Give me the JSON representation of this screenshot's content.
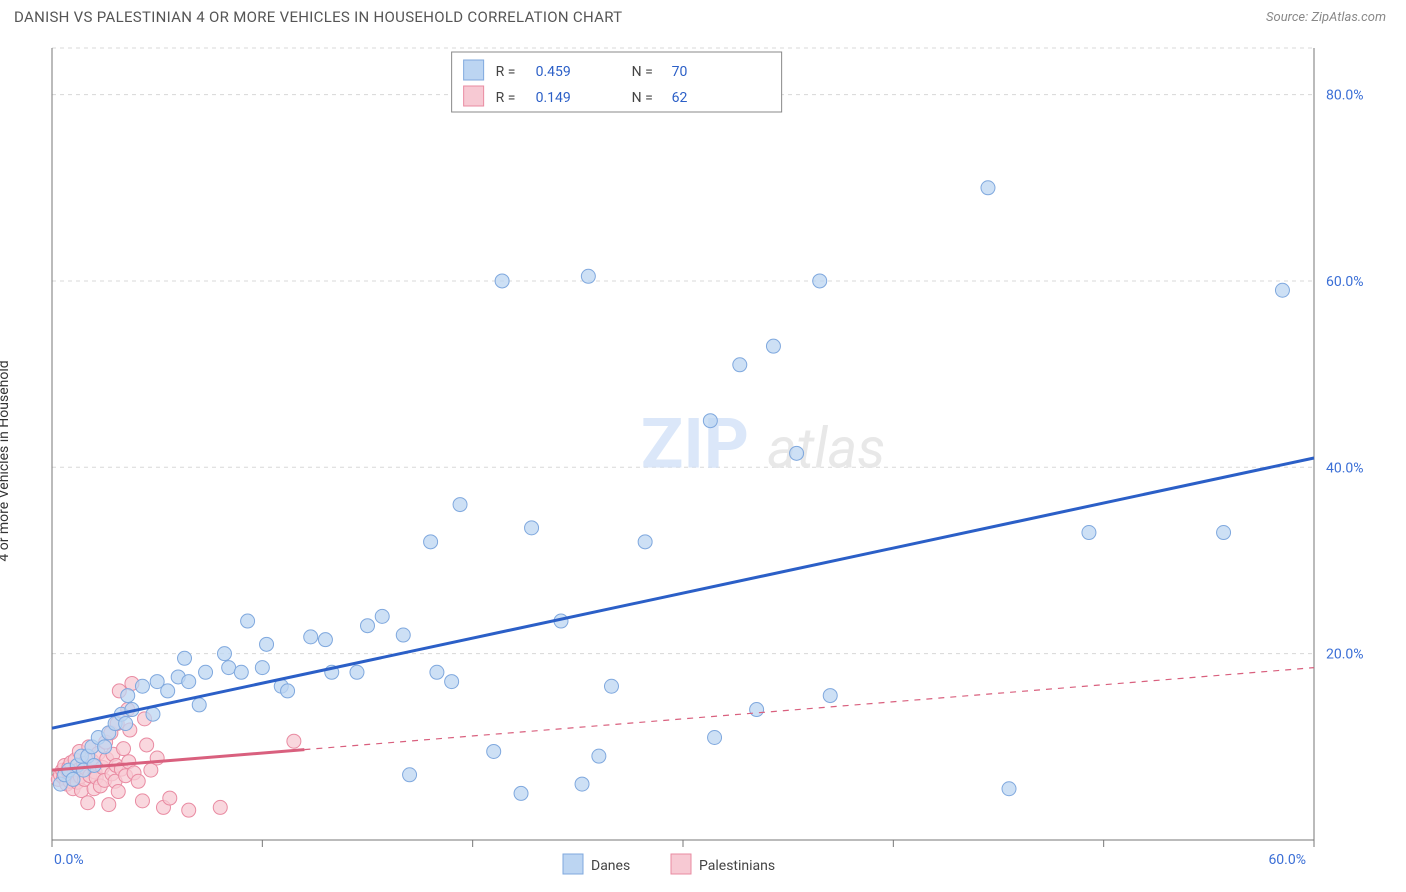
{
  "header": {
    "title": "DANISH VS PALESTINIAN 4 OR MORE VEHICLES IN HOUSEHOLD CORRELATION CHART",
    "source_prefix": "Source: ",
    "source_name": "ZipAtlas.com"
  },
  "axes": {
    "ylabel": "4 or more Vehicles in Household",
    "xlim": [
      0,
      60
    ],
    "ylim": [
      0,
      85
    ],
    "x_ticks": [
      {
        "v": 0,
        "label": "0.0%"
      },
      {
        "v": 60,
        "label": "60.0%"
      }
    ],
    "x_tick_minor": [
      10,
      20,
      30,
      40,
      50
    ],
    "y_ticks": [
      {
        "v": 20,
        "label": "20.0%"
      },
      {
        "v": 40,
        "label": "40.0%"
      },
      {
        "v": 60,
        "label": "60.0%"
      },
      {
        "v": 80,
        "label": "80.0%"
      }
    ],
    "grid_color": "#d8d8d8",
    "axis_color": "#777777",
    "bg_color": "#ffffff"
  },
  "series": {
    "danes": {
      "label": "Danes",
      "fill": "#bcd5f2",
      "stroke": "#7fa8de",
      "r_value": "0.459",
      "n_value": "70",
      "marker_r": 7,
      "trend": {
        "x1": 0,
        "y1": 12.0,
        "x2": 60,
        "y2": 41.0,
        "x_solid_end": 60,
        "color": "#2b5fc7"
      },
      "points": [
        [
          0.4,
          6
        ],
        [
          0.6,
          7
        ],
        [
          0.8,
          7.5
        ],
        [
          1,
          6.5
        ],
        [
          1.2,
          8
        ],
        [
          1.5,
          7.5
        ],
        [
          1.4,
          9
        ],
        [
          1.7,
          9
        ],
        [
          1.9,
          10
        ],
        [
          2,
          8
        ],
        [
          2.2,
          11
        ],
        [
          2.5,
          10
        ],
        [
          2.7,
          11.5
        ],
        [
          3,
          12.5
        ],
        [
          3.3,
          13.5
        ],
        [
          3.5,
          12.5
        ],
        [
          3.6,
          15.5
        ],
        [
          3.8,
          14
        ],
        [
          4.3,
          16.5
        ],
        [
          4.8,
          13.5
        ],
        [
          5,
          17
        ],
        [
          5.5,
          16
        ],
        [
          6,
          17.5
        ],
        [
          6.3,
          19.5
        ],
        [
          6.5,
          17
        ],
        [
          7,
          14.5
        ],
        [
          7.3,
          18
        ],
        [
          8.2,
          20
        ],
        [
          8.4,
          18.5
        ],
        [
          9,
          18
        ],
        [
          9.3,
          23.5
        ],
        [
          10,
          18.5
        ],
        [
          10.2,
          21
        ],
        [
          10.9,
          16.5
        ],
        [
          11.2,
          16
        ],
        [
          12.3,
          21.8
        ],
        [
          13,
          21.5
        ],
        [
          13.3,
          18
        ],
        [
          14.5,
          18
        ],
        [
          15,
          23
        ],
        [
          15.7,
          24
        ],
        [
          16.7,
          22
        ],
        [
          17,
          7
        ],
        [
          18,
          32
        ],
        [
          18.3,
          18
        ],
        [
          19,
          17
        ],
        [
          19.4,
          36
        ],
        [
          21,
          9.5
        ],
        [
          21.4,
          60
        ],
        [
          22.3,
          5
        ],
        [
          22.8,
          33.5
        ],
        [
          24.2,
          23.5
        ],
        [
          25.2,
          6
        ],
        [
          25.5,
          60.5
        ],
        [
          26,
          9
        ],
        [
          26.6,
          16.5
        ],
        [
          28.2,
          32
        ],
        [
          31.3,
          45
        ],
        [
          31.5,
          11
        ],
        [
          32.7,
          51
        ],
        [
          33.5,
          14
        ],
        [
          34.3,
          53
        ],
        [
          35.4,
          41.5
        ],
        [
          36.5,
          60
        ],
        [
          37,
          15.5
        ],
        [
          44.5,
          70
        ],
        [
          45.5,
          5.5
        ],
        [
          49.3,
          33
        ],
        [
          55.7,
          33
        ],
        [
          58.5,
          59
        ]
      ]
    },
    "palestinians": {
      "label": "Palestinians",
      "fill": "#f7c9d3",
      "stroke": "#e98ba2",
      "r_value": "0.149",
      "n_value": "62",
      "marker_r": 7,
      "trend": {
        "x1": 0,
        "y1": 7.5,
        "x2": 60,
        "y2": 18.5,
        "x_solid_end": 12,
        "color": "#d9607e"
      },
      "points": [
        [
          0.3,
          6.5
        ],
        [
          0.4,
          7
        ],
        [
          0.5,
          7.5
        ],
        [
          0.55,
          6.7
        ],
        [
          0.6,
          8
        ],
        [
          0.7,
          6
        ],
        [
          0.75,
          7.4
        ],
        [
          0.8,
          7.8
        ],
        [
          0.85,
          6.3
        ],
        [
          0.9,
          8.3
        ],
        [
          1,
          5.5
        ],
        [
          1.05,
          7.1
        ],
        [
          1.1,
          8.6
        ],
        [
          1.2,
          6.2
        ],
        [
          1.25,
          7.5
        ],
        [
          1.3,
          9.5
        ],
        [
          1.35,
          6.8
        ],
        [
          1.4,
          5.3
        ],
        [
          1.5,
          8.2
        ],
        [
          1.55,
          6.5
        ],
        [
          1.6,
          7.7
        ],
        [
          1.7,
          4
        ],
        [
          1.75,
          10
        ],
        [
          1.8,
          6.9
        ],
        [
          1.9,
          8.5
        ],
        [
          2,
          5.5
        ],
        [
          2.05,
          7.3
        ],
        [
          2.1,
          6.7
        ],
        [
          2.2,
          9.3
        ],
        [
          2.3,
          5.8
        ],
        [
          2.4,
          7.8
        ],
        [
          2.5,
          6.4
        ],
        [
          2.55,
          10.5
        ],
        [
          2.6,
          8.7
        ],
        [
          2.7,
          3.8
        ],
        [
          2.8,
          11.5
        ],
        [
          2.85,
          7.1
        ],
        [
          2.9,
          9.2
        ],
        [
          3.0,
          6.3
        ],
        [
          3.05,
          8.0
        ],
        [
          3.1,
          12.5
        ],
        [
          3.15,
          5.2
        ],
        [
          3.2,
          16
        ],
        [
          3.3,
          7.6
        ],
        [
          3.4,
          9.8
        ],
        [
          3.5,
          6.9
        ],
        [
          3.6,
          14
        ],
        [
          3.65,
          8.4
        ],
        [
          3.7,
          11.8
        ],
        [
          3.8,
          16.8
        ],
        [
          3.9,
          7.2
        ],
        [
          4.1,
          6.3
        ],
        [
          4.3,
          4.2
        ],
        [
          4.4,
          13
        ],
        [
          4.5,
          10.2
        ],
        [
          4.7,
          7.5
        ],
        [
          5.0,
          8.8
        ],
        [
          5.3,
          3.5
        ],
        [
          5.6,
          4.5
        ],
        [
          6.5,
          3.2
        ],
        [
          8.0,
          3.5
        ],
        [
          11.5,
          10.6
        ]
      ]
    }
  },
  "legend": {
    "r_label": "R =",
    "n_label": "N ="
  },
  "bottom_legend": {
    "items": [
      "danes",
      "palestinians"
    ]
  },
  "watermark": {
    "zip": "ZIP",
    "atlas": "atlas"
  }
}
